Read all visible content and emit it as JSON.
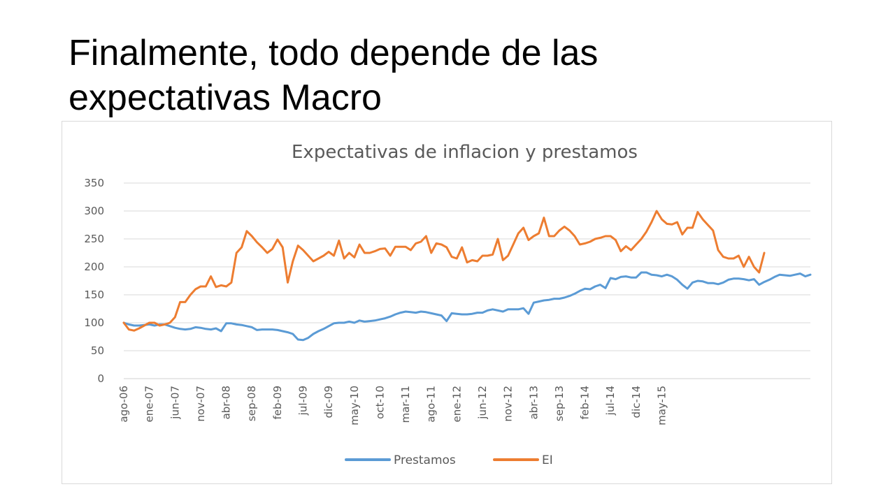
{
  "slide": {
    "title": "Finalmente, todo depende de las\nexpectativas Macro"
  },
  "chart_data": {
    "type": "line",
    "title": "Expectativas de inflacion y prestamos",
    "xlabel": "",
    "ylabel": "",
    "ylim": [
      0,
      350
    ],
    "yticks": [
      0,
      50,
      100,
      150,
      200,
      250,
      300,
      350
    ],
    "grid": true,
    "legend_position": "bottom",
    "x_tick_labels": [
      "ago-06",
      "ene-07",
      "jun-07",
      "nov-07",
      "abr-08",
      "sep-08",
      "feb-09",
      "jul-09",
      "dic-09",
      "may-10",
      "oct-10",
      "mar-11",
      "ago-11",
      "ene-12",
      "jun-12",
      "nov-12",
      "abr-13",
      "sep-13",
      "feb-14",
      "jul-14",
      "dic-14",
      "may-15"
    ],
    "months_per_tick": 5,
    "series": [
      {
        "name": "Prestamos",
        "color": "#5b9bd5",
        "values": [
          100,
          97,
          95,
          95,
          96,
          97,
          95,
          97,
          97,
          94,
          91,
          89,
          88,
          89,
          92,
          91,
          89,
          88,
          90,
          85,
          99,
          99,
          97,
          96,
          94,
          92,
          87,
          88,
          88,
          88,
          87,
          85,
          83,
          80,
          70,
          69,
          73,
          80,
          85,
          89,
          94,
          99,
          100,
          100,
          102,
          100,
          104,
          102,
          103,
          104,
          106,
          108,
          111,
          115,
          118,
          120,
          119,
          118,
          120,
          119,
          117,
          115,
          113,
          103,
          117,
          116,
          115,
          115,
          116,
          118,
          118,
          122,
          124,
          122,
          120,
          124,
          124,
          124,
          126,
          116,
          136,
          138,
          140,
          141,
          143,
          143,
          145,
          148,
          152,
          157,
          161,
          160,
          165,
          168,
          162,
          180,
          178,
          182,
          183,
          181,
          181,
          190,
          190,
          186,
          185,
          183,
          186,
          183,
          177,
          168,
          161,
          172,
          175,
          174,
          171,
          171,
          169,
          172,
          177,
          179,
          179,
          178,
          176,
          178,
          168,
          173,
          177,
          182,
          186,
          185,
          184,
          186,
          188,
          183,
          186
        ]
      },
      {
        "name": "EI",
        "color": "#ed7d31",
        "values": [
          100,
          88,
          86,
          90,
          95,
          100,
          100,
          95,
          97,
          100,
          110,
          137,
          137,
          150,
          160,
          165,
          165,
          183,
          164,
          167,
          165,
          172,
          225,
          235,
          264,
          255,
          244,
          235,
          225,
          232,
          249,
          235,
          172,
          210,
          238,
          230,
          220,
          210,
          215,
          220,
          227,
          220,
          247,
          215,
          225,
          217,
          240,
          225,
          225,
          228,
          232,
          233,
          220,
          236,
          236,
          236,
          230,
          242,
          245,
          255,
          225,
          242,
          240,
          235,
          218,
          215,
          235,
          208,
          212,
          210,
          220,
          220,
          222,
          250,
          212,
          220,
          240,
          260,
          270,
          248,
          255,
          260,
          288,
          255,
          255,
          265,
          272,
          265,
          255,
          240,
          242,
          245,
          250,
          252,
          255,
          255,
          248,
          228,
          237,
          230,
          240,
          250,
          263,
          280,
          300,
          285,
          277,
          276,
          280,
          258,
          270,
          270,
          298,
          285,
          275,
          265,
          230,
          218,
          215,
          215,
          220,
          200,
          218,
          200,
          190,
          225
        ]
      }
    ]
  }
}
